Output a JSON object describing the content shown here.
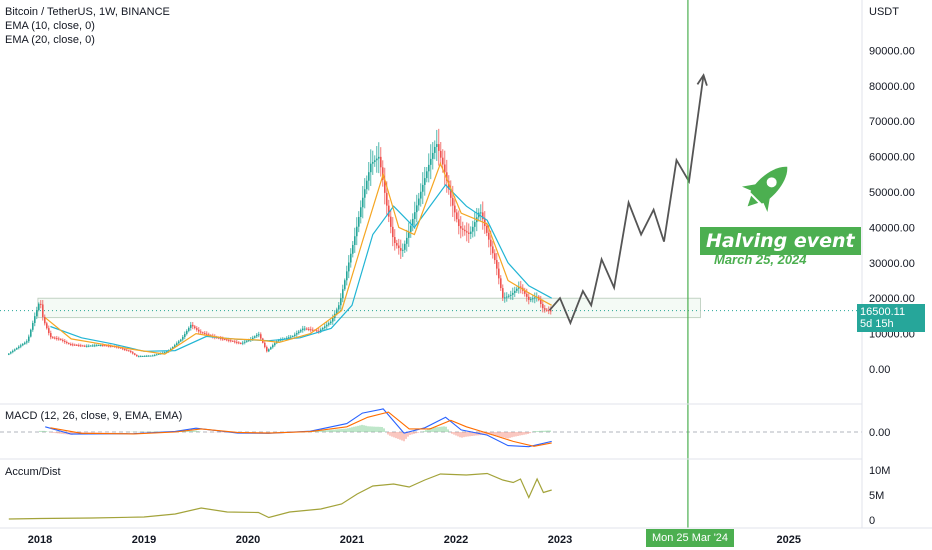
{
  "header": {
    "symbol_line": "Bitcoin / TetherUS, 1W, BINANCE",
    "ema_fast": "EMA (10, close, 0)",
    "ema_slow": "EMA (20, close, 0)"
  },
  "panes": {
    "macd_label": "MACD (12, 26, close, 9, EMA, EMA)",
    "ad_label": "Accum/Dist"
  },
  "price_tag": {
    "price": "16500.11",
    "countdown": "5d 15h"
  },
  "crosshair_date": "Mon 25 Mar '24",
  "annotation": {
    "title": "Halving event",
    "date": "March 25, 2024"
  },
  "colors": {
    "up": "#26a69a",
    "down": "#ef5350",
    "ema10": "#f5a623",
    "ema20": "#22b5d4",
    "halving": "#4caf50",
    "projection": "#555555",
    "macd": "#2962ff",
    "signal": "#ff6d00",
    "ad": "#a3a33a"
  },
  "chart_data": {
    "type": "candlestick",
    "title": "Bitcoin / TetherUS, 1W, BINANCE",
    "currency": "USDT",
    "price_axis": {
      "ticks": [
        "90000.00",
        "80000.00",
        "70000.00",
        "60000.00",
        "50000.00",
        "40000.00",
        "30000.00",
        "20000.00",
        "10000.00",
        "0.00"
      ]
    },
    "time_axis": {
      "ticks": [
        "2018",
        "2019",
        "2020",
        "2021",
        "2022",
        "2023",
        "2025"
      ]
    },
    "price_path": [
      [
        2017.7,
        4000
      ],
      [
        2017.9,
        8000
      ],
      [
        2017.97,
        15000
      ],
      [
        2018.02,
        19500
      ],
      [
        2018.05,
        14000
      ],
      [
        2018.12,
        9000
      ],
      [
        2018.2,
        8500
      ],
      [
        2018.3,
        7000
      ],
      [
        2018.45,
        6500
      ],
      [
        2018.6,
        6800
      ],
      [
        2018.75,
        6300
      ],
      [
        2018.88,
        5000
      ],
      [
        2018.95,
        3600
      ],
      [
        2019.1,
        3800
      ],
      [
        2019.25,
        5000
      ],
      [
        2019.38,
        8500
      ],
      [
        2019.47,
        12500
      ],
      [
        2019.55,
        10500
      ],
      [
        2019.7,
        9000
      ],
      [
        2019.85,
        8000
      ],
      [
        2019.95,
        7200
      ],
      [
        2020.05,
        8500
      ],
      [
        2020.12,
        10000
      ],
      [
        2020.2,
        5000
      ],
      [
        2020.3,
        8000
      ],
      [
        2020.45,
        9300
      ],
      [
        2020.55,
        11500
      ],
      [
        2020.7,
        10700
      ],
      [
        2020.82,
        13500
      ],
      [
        2020.9,
        18500
      ],
      [
        2020.98,
        29000
      ],
      [
        2021.05,
        38000
      ],
      [
        2021.12,
        48000
      ],
      [
        2021.2,
        58000
      ],
      [
        2021.28,
        60000
      ],
      [
        2021.36,
        45000
      ],
      [
        2021.42,
        36000
      ],
      [
        2021.5,
        33000
      ],
      [
        2021.58,
        40000
      ],
      [
        2021.66,
        48000
      ],
      [
        2021.75,
        57000
      ],
      [
        2021.83,
        64000
      ],
      [
        2021.9,
        57000
      ],
      [
        2021.98,
        47000
      ],
      [
        2022.05,
        40000
      ],
      [
        2022.15,
        38000
      ],
      [
        2022.25,
        45000
      ],
      [
        2022.32,
        38000
      ],
      [
        2022.4,
        30000
      ],
      [
        2022.47,
        20000
      ],
      [
        2022.55,
        21000
      ],
      [
        2022.63,
        23500
      ],
      [
        2022.72,
        19500
      ],
      [
        2022.8,
        20500
      ],
      [
        2022.86,
        16800
      ],
      [
        2022.92,
        16500
      ]
    ],
    "ema10_path": [
      [
        2018.05,
        14500
      ],
      [
        2018.3,
        8500
      ],
      [
        2018.6,
        7000
      ],
      [
        2018.9,
        5500
      ],
      [
        2019.2,
        4200
      ],
      [
        2019.5,
        10000
      ],
      [
        2019.8,
        8600
      ],
      [
        2020.1,
        8200
      ],
      [
        2020.3,
        7500
      ],
      [
        2020.6,
        10000
      ],
      [
        2020.9,
        16500
      ],
      [
        2021.1,
        36000
      ],
      [
        2021.3,
        55000
      ],
      [
        2021.45,
        40000
      ],
      [
        2021.6,
        38000
      ],
      [
        2021.85,
        58000
      ],
      [
        2022.05,
        44000
      ],
      [
        2022.3,
        41000
      ],
      [
        2022.5,
        25000
      ],
      [
        2022.7,
        21500
      ],
      [
        2022.92,
        18000
      ]
    ],
    "ema20_path": [
      [
        2018.1,
        12000
      ],
      [
        2018.4,
        8800
      ],
      [
        2018.7,
        7100
      ],
      [
        2019.0,
        5000
      ],
      [
        2019.3,
        5200
      ],
      [
        2019.6,
        9200
      ],
      [
        2019.9,
        8400
      ],
      [
        2020.2,
        8000
      ],
      [
        2020.5,
        8800
      ],
      [
        2020.8,
        11500
      ],
      [
        2021.0,
        18000
      ],
      [
        2021.2,
        38000
      ],
      [
        2021.4,
        46000
      ],
      [
        2021.6,
        40000
      ],
      [
        2021.9,
        52000
      ],
      [
        2022.1,
        46000
      ],
      [
        2022.3,
        42000
      ],
      [
        2022.5,
        30000
      ],
      [
        2022.7,
        23500
      ],
      [
        2022.92,
        20000
      ]
    ],
    "projection_path": [
      [
        2022.9,
        16600
      ],
      [
        2023.0,
        20000
      ],
      [
        2023.1,
        13000
      ],
      [
        2023.22,
        22000
      ],
      [
        2023.3,
        18000
      ],
      [
        2023.4,
        31000
      ],
      [
        2023.52,
        23000
      ],
      [
        2023.66,
        47000
      ],
      [
        2023.78,
        38000
      ],
      [
        2023.9,
        45000
      ],
      [
        2024.0,
        36000
      ],
      [
        2024.12,
        59000
      ],
      [
        2024.24,
        53000
      ],
      [
        2024.38,
        83000
      ]
    ],
    "resistance_zone": [
      14500,
      20000
    ],
    "halving_date": 2024.23,
    "macd": {
      "label": "MACD (12, 26, close, 9, EMA, EMA)",
      "ticks": [
        "0.00"
      ],
      "macd_line": [
        [
          2018.05,
          2500
        ],
        [
          2018.3,
          -1000
        ],
        [
          2018.9,
          -800
        ],
        [
          2019.3,
          300
        ],
        [
          2019.5,
          1800
        ],
        [
          2019.9,
          -500
        ],
        [
          2020.2,
          -600
        ],
        [
          2020.6,
          400
        ],
        [
          2020.95,
          4000
        ],
        [
          2021.1,
          9000
        ],
        [
          2021.3,
          11000
        ],
        [
          2021.5,
          -500
        ],
        [
          2021.7,
          2000
        ],
        [
          2021.9,
          7000
        ],
        [
          2022.05,
          1000
        ],
        [
          2022.3,
          -1500
        ],
        [
          2022.5,
          -6500
        ],
        [
          2022.7,
          -7000
        ],
        [
          2022.92,
          -4500
        ]
      ],
      "signal_line": [
        [
          2018.1,
          2000
        ],
        [
          2018.4,
          -600
        ],
        [
          2018.9,
          -900
        ],
        [
          2019.3,
          0
        ],
        [
          2019.55,
          1500
        ],
        [
          2019.9,
          -200
        ],
        [
          2020.2,
          -500
        ],
        [
          2020.6,
          200
        ],
        [
          2020.95,
          2500
        ],
        [
          2021.15,
          7000
        ],
        [
          2021.35,
          9500
        ],
        [
          2021.55,
          1500
        ],
        [
          2021.75,
          1500
        ],
        [
          2021.95,
          5500
        ],
        [
          2022.1,
          2500
        ],
        [
          2022.3,
          -500
        ],
        [
          2022.55,
          -4500
        ],
        [
          2022.75,
          -6800
        ],
        [
          2022.92,
          -5200
        ]
      ]
    },
    "accum_dist": {
      "label": "Accum/Dist",
      "ticks": [
        "10M",
        "5M",
        "0"
      ],
      "path": [
        [
          2017.7,
          0.2
        ],
        [
          2018.0,
          0.3
        ],
        [
          2018.5,
          0.4
        ],
        [
          2019.0,
          0.6
        ],
        [
          2019.3,
          1.2
        ],
        [
          2019.55,
          2.4
        ],
        [
          2019.8,
          1.6
        ],
        [
          2020.1,
          1.5
        ],
        [
          2020.2,
          0.5
        ],
        [
          2020.4,
          1.6
        ],
        [
          2020.7,
          2.2
        ],
        [
          2020.9,
          3.2
        ],
        [
          2021.05,
          5.2
        ],
        [
          2021.2,
          6.8
        ],
        [
          2021.4,
          7.2
        ],
        [
          2021.55,
          6.6
        ],
        [
          2021.7,
          8.0
        ],
        [
          2021.85,
          9.2
        ],
        [
          2022.1,
          9.0
        ],
        [
          2022.3,
          9.3
        ],
        [
          2022.45,
          8.0
        ],
        [
          2022.55,
          7.5
        ],
        [
          2022.62,
          8.2
        ],
        [
          2022.7,
          4.5
        ],
        [
          2022.78,
          8.2
        ],
        [
          2022.84,
          5.5
        ],
        [
          2022.92,
          6.0
        ]
      ]
    }
  }
}
